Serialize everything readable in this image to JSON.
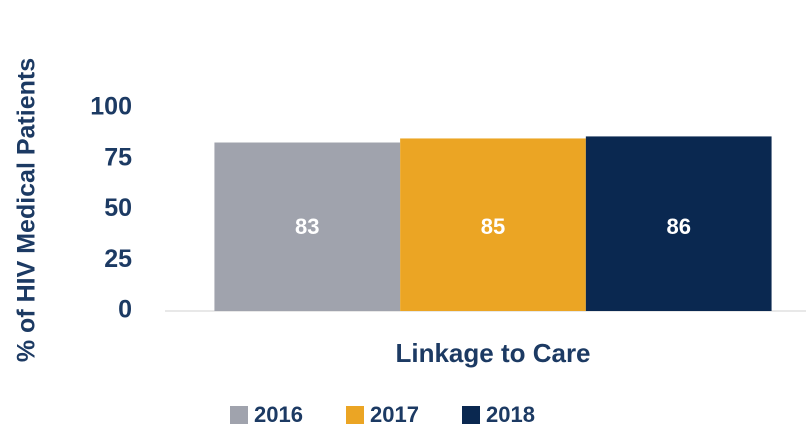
{
  "chart_data": {
    "type": "bar",
    "y_label": "% of HIV Medical Patients",
    "categories": [
      "Linkage to Care"
    ],
    "series": [
      {
        "name": "2016",
        "color": "#a0a3ad",
        "values": [
          83
        ]
      },
      {
        "name": "2017",
        "color": "#eba524",
        "values": [
          85
        ]
      },
      {
        "name": "2018",
        "color": "#0a2850",
        "values": [
          86
        ]
      }
    ],
    "ylim": [
      0,
      100
    ],
    "yticks": [
      0,
      25,
      50,
      75,
      100
    ],
    "grid": false,
    "legend": "bottom"
  }
}
